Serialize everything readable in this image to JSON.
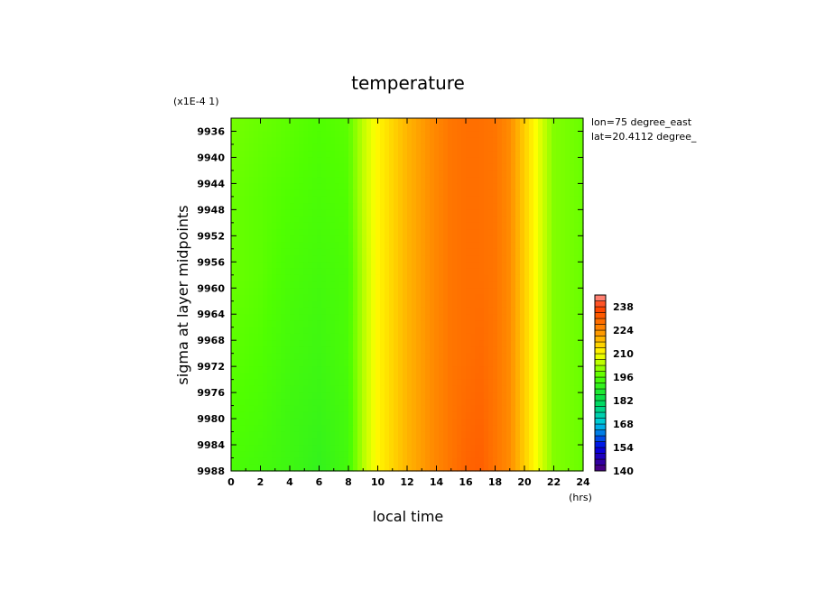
{
  "chart_data": {
    "type": "heatmap",
    "title": "temperature",
    "xlabel": "local time",
    "x_unit": "(hrs)",
    "ylabel": "sigma at layer midpoints",
    "y_scale_note": "(x1E-4 1)",
    "annotations": [
      "lon=75 degree_east",
      "lat=20.4112 degree_"
    ],
    "xlim": [
      0,
      24
    ],
    "ylim": [
      9988,
      9934
    ],
    "x_ticks": [
      "0",
      "2",
      "4",
      "6",
      "8",
      "10",
      "12",
      "14",
      "16",
      "18",
      "20",
      "22",
      "24"
    ],
    "y_ticks": [
      "9936",
      "9940",
      "9944",
      "9948",
      "9952",
      "9956",
      "9960",
      "9964",
      "9968",
      "9972",
      "9976",
      "9980",
      "9984",
      "9988"
    ],
    "colorbar": {
      "ticks": [
        "140",
        "154",
        "168",
        "182",
        "196",
        "210",
        "224",
        "238"
      ],
      "range": [
        140,
        245
      ],
      "step": 3.5
    },
    "x": [
      0,
      2,
      4,
      6,
      8,
      9,
      10,
      11,
      12,
      13,
      14,
      15,
      16,
      17,
      18,
      19,
      20,
      21,
      22,
      24
    ],
    "y": [
      9934,
      9946,
      9958,
      9970,
      9980,
      9988
    ],
    "values": [
      [
        199,
        198,
        197,
        196,
        197,
        205,
        211,
        215,
        219,
        222,
        225,
        228,
        229,
        229,
        228,
        224,
        216,
        208,
        200,
        198
      ],
      [
        198,
        197,
        196,
        195,
        196,
        205,
        211,
        215,
        219,
        222,
        225,
        228,
        229,
        229,
        228,
        224,
        216,
        208,
        200,
        198
      ],
      [
        198,
        197,
        195,
        194,
        195,
        204,
        211,
        215,
        219,
        222,
        225,
        228,
        229,
        229,
        228,
        224,
        216,
        208,
        200,
        198
      ],
      [
        197,
        196,
        194,
        193,
        195,
        204,
        211,
        215,
        219,
        222,
        225,
        228,
        229,
        230,
        228,
        224,
        216,
        208,
        200,
        198
      ],
      [
        196,
        195,
        193,
        192,
        194,
        204,
        211,
        215,
        219,
        222,
        225,
        228,
        230,
        231,
        228,
        224,
        216,
        208,
        200,
        198
      ],
      [
        195,
        194,
        193,
        191,
        194,
        204,
        211,
        215,
        219,
        222,
        225,
        228,
        231,
        232,
        228,
        224,
        216,
        208,
        200,
        198
      ]
    ]
  }
}
